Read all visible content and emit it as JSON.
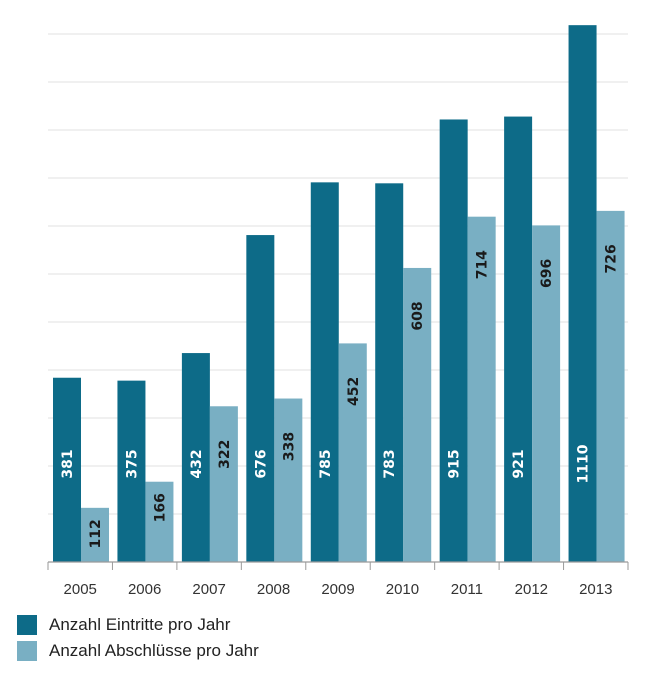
{
  "chart_data": {
    "type": "bar",
    "categories": [
      "2005",
      "2006",
      "2007",
      "2008",
      "2009",
      "2010",
      "2011",
      "2012",
      "2013"
    ],
    "series": [
      {
        "name": "Anzahl Eintritte pro Jahr",
        "color": "#0d6b88",
        "values": [
          381,
          375,
          432,
          676,
          785,
          783,
          915,
          921,
          1110
        ]
      },
      {
        "name": "Anzahl Abschlüsse pro Jahr",
        "color": "#79afc3",
        "values": [
          112,
          166,
          322,
          338,
          452,
          608,
          714,
          696,
          726
        ]
      }
    ],
    "ylim": [
      0,
      1100
    ],
    "grid": true,
    "legend_position": "bottom-left",
    "data_labels": "vertical-inside"
  }
}
